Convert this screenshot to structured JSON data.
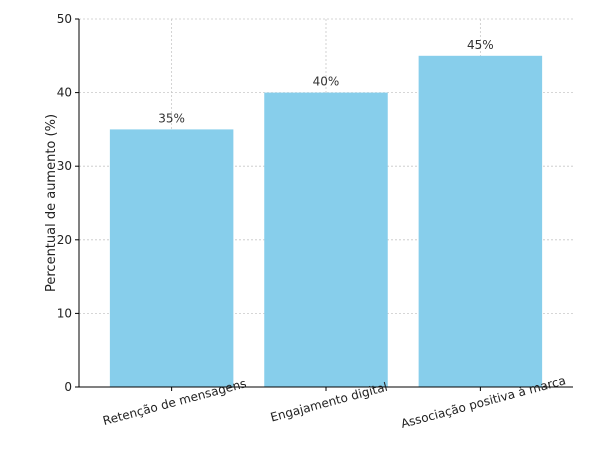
{
  "chart_data": {
    "type": "bar",
    "categories": [
      "Retenção de mensagens",
      "Engajamento digital",
      "Associação positiva à marca"
    ],
    "values": [
      35,
      40,
      45
    ],
    "data_labels": [
      "35%",
      "40%",
      "45%"
    ],
    "title": "",
    "xlabel": "",
    "ylabel": "Percentual de aumento (%)",
    "ylim": [
      0,
      50
    ],
    "yticks": [
      0,
      10,
      20,
      30,
      40,
      50
    ],
    "grid": true,
    "bar_color": "#87CEEB",
    "grid_color": "#c8c8c8"
  }
}
